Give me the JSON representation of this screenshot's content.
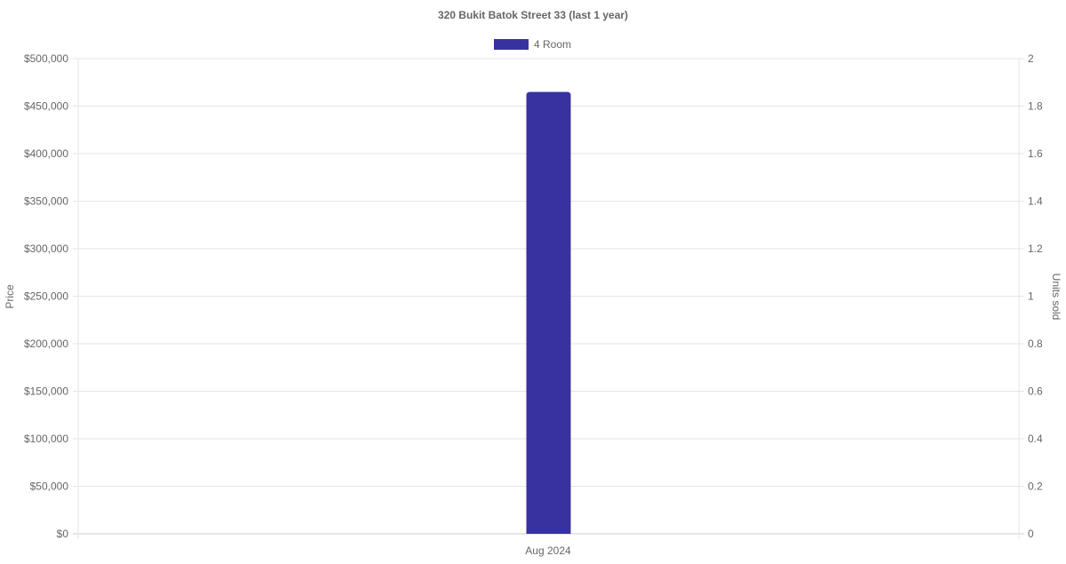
{
  "chart_data": {
    "type": "bar",
    "title": "320 Bukit Batok Street 33 (last 1 year)",
    "categories": [
      "Aug 2024"
    ],
    "series": [
      {
        "name": "4 Room",
        "values": [
          465000
        ],
        "color": "#3832a0",
        "axis": "left"
      }
    ],
    "ylabel": "Price",
    "ylabel_right": "Units sold",
    "ylim": [
      0,
      500000
    ],
    "ylim_right": [
      0,
      2
    ],
    "yticks": [
      "$0",
      "$50,000",
      "$100,000",
      "$150,000",
      "$200,000",
      "$250,000",
      "$300,000",
      "$350,000",
      "$400,000",
      "$450,000",
      "$500,000"
    ],
    "yticks_right": [
      "0",
      "0.2",
      "0.4",
      "0.6",
      "0.8",
      "1",
      "1.2",
      "1.4",
      "1.6",
      "1.8",
      "2"
    ],
    "grid": true,
    "legend": "top"
  }
}
